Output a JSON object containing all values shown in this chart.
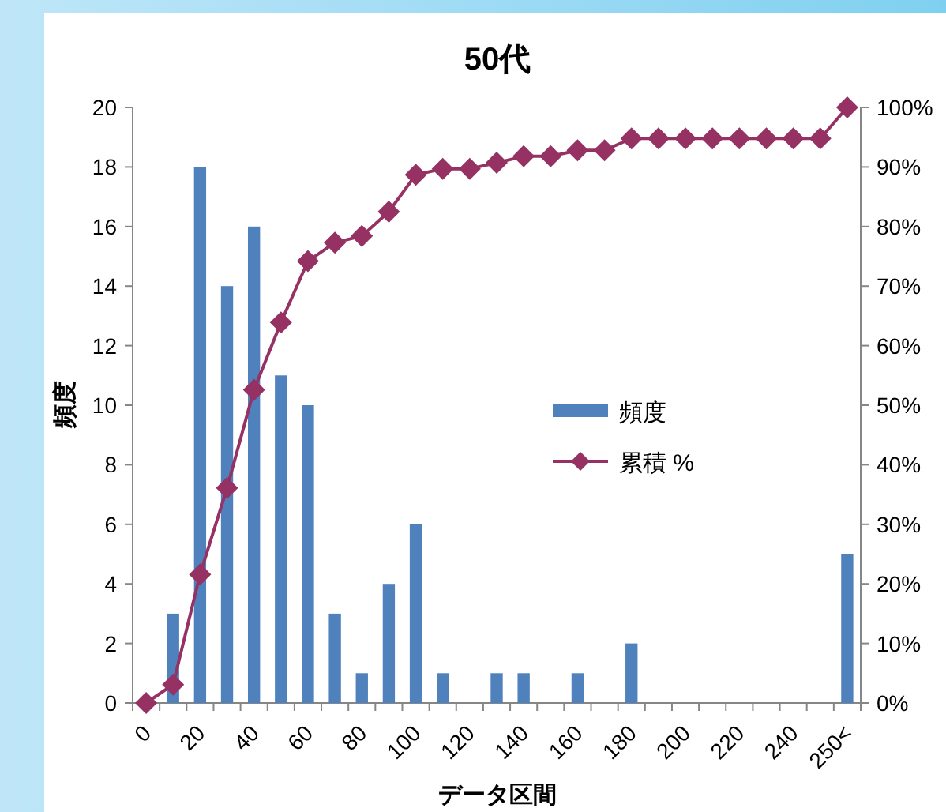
{
  "chart_data": {
    "type": "bar",
    "title": "50代",
    "xlabel": "データ区間",
    "ylabel": "頻度",
    "categories": [
      "0",
      null,
      "20",
      null,
      "40",
      null,
      "60",
      null,
      "80",
      null,
      "100",
      null,
      "120",
      null,
      "140",
      null,
      "160",
      null,
      "180",
      null,
      "200",
      null,
      "220",
      null,
      "240",
      null,
      "250<"
    ],
    "series": [
      {
        "name": "頻度",
        "color": "#4f81bd",
        "values": [
          0,
          3,
          18,
          14,
          16,
          11,
          10,
          3,
          1,
          4,
          6,
          1,
          0,
          1,
          1,
          0,
          1,
          0,
          2,
          0,
          0,
          0,
          0,
          0,
          0,
          0,
          5
        ]
      },
      {
        "name": "累積 %",
        "type": "line",
        "axis": "y2",
        "color": "#953163",
        "marker": "diamond",
        "values": [
          0,
          3.1,
          21.6,
          36.1,
          52.6,
          63.9,
          74.2,
          77.3,
          78.4,
          82.5,
          88.7,
          89.7,
          89.7,
          90.7,
          91.8,
          91.8,
          92.8,
          92.8,
          94.8,
          94.8,
          94.8,
          94.8,
          94.8,
          94.8,
          94.8,
          94.8,
          100
        ]
      }
    ],
    "ylim": [
      0,
      20
    ],
    "yticks": [
      0,
      2,
      4,
      6,
      8,
      10,
      12,
      14,
      16,
      18,
      20
    ],
    "y2lim": [
      0,
      100
    ],
    "y2ticks": [
      {
        "value": 0,
        "label": "0%"
      },
      {
        "value": 10,
        "label": "10%"
      },
      {
        "value": 20,
        "label": "20%"
      },
      {
        "value": 30,
        "label": "30%"
      },
      {
        "value": 40,
        "label": "40%"
      },
      {
        "value": 50,
        "label": "50%"
      },
      {
        "value": 60,
        "label": "60%"
      },
      {
        "value": 70,
        "label": "70%"
      },
      {
        "value": 80,
        "label": "80%"
      },
      {
        "value": 90,
        "label": "90%"
      },
      {
        "value": 100,
        "label": "100%"
      }
    ],
    "legend": "right",
    "grid": false
  }
}
